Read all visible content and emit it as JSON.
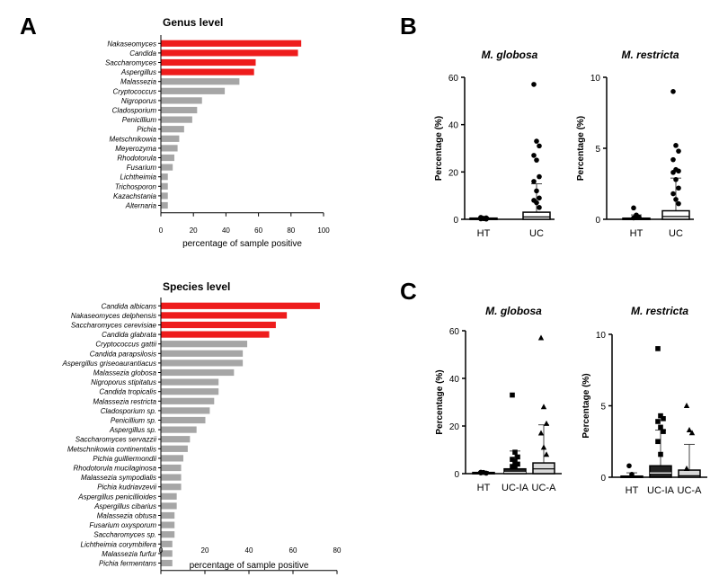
{
  "panels": {
    "A": "A",
    "B": "B",
    "C": "C"
  },
  "colors": {
    "highlight": "#ee1c1c",
    "bar": "#a6a6a6",
    "box_light": "#d9d9d9",
    "axis": "#000000"
  },
  "chart_data": [
    {
      "id": "genus",
      "type": "bar",
      "orientation": "horizontal",
      "title": "Genus level",
      "xlabel": "percentage of sample positive",
      "xlim": [
        0,
        100
      ],
      "xticks": [
        0,
        20,
        40,
        60,
        80,
        100
      ],
      "categories": [
        "Nakaseomyces",
        "Candida",
        "Saccharomyces",
        "Aspergillus",
        "Malassezia",
        "Cryptococcus",
        "Nigroporus",
        "Cladosporium",
        "Penicillium",
        "Pichia",
        "Metschnikowia",
        "Meyerozyma",
        "Rhodotorula",
        "Fusarium",
        "Lichtheimia",
        "Trichosporon",
        "Kazachstania",
        "Alternaria"
      ],
      "values": [
        86,
        84,
        58,
        57,
        48,
        39,
        25,
        22,
        19,
        14,
        11,
        10,
        8,
        7,
        4,
        4,
        4,
        4
      ],
      "highlighted": [
        true,
        true,
        true,
        true,
        false,
        false,
        false,
        false,
        false,
        false,
        false,
        false,
        false,
        false,
        false,
        false,
        false,
        false
      ]
    },
    {
      "id": "species",
      "type": "bar",
      "orientation": "horizontal",
      "title": "Species level",
      "xlabel": "percentage of sample positive",
      "xlim": [
        0,
        80
      ],
      "xticks": [
        0,
        20,
        40,
        60,
        80
      ],
      "categories": [
        "Candida albicans",
        "Nakaseomyces delphensis",
        "Saccharomyces cerevisiae",
        "Candida glabrata",
        "Cryptococcus gattii",
        "Candida parapsilosis",
        "Aspergillus griseoaurantiacus",
        "Malassezia globosa",
        "Nigroporus stipitatus",
        "Candida tropicalis",
        "Malassezia restricta",
        "Cladosporium sp.",
        "Penicillium sp.",
        "Aspergillus sp.",
        "Saccharomyces servazzii",
        "Metschnikowia continentalis",
        "Pichia guilliermondii",
        "Rhodotorula mucilaginosa",
        "Malassezia sympodialis",
        "Pichia kudriavzevii",
        "Aspergillus penicillioides",
        "Aspergillus cibarius",
        "Malassezia obtusa",
        "Fusarium oxysporum",
        "Saccharomyces sp.",
        "Lichtheimia corymbifera",
        "Malassezia furfur",
        "Pichia fermentans"
      ],
      "values": [
        72,
        57,
        52,
        49,
        39,
        37,
        37,
        33,
        26,
        26,
        24,
        22,
        20,
        16,
        13,
        12,
        10,
        9,
        9,
        9,
        7,
        7,
        6,
        6,
        6,
        5,
        5,
        5
      ],
      "highlighted": [
        true,
        true,
        true,
        true,
        false,
        false,
        false,
        false,
        false,
        false,
        false,
        false,
        false,
        false,
        false,
        false,
        false,
        false,
        false,
        false,
        false,
        false,
        false,
        false,
        false,
        false,
        false,
        false
      ]
    },
    {
      "id": "b-globosa",
      "type": "box",
      "title": "M. globosa",
      "ylabel": "Percentage (%)",
      "ylim": [
        0,
        60
      ],
      "yticks": [
        0,
        20,
        40,
        60
      ],
      "groups": [
        {
          "label": "HT",
          "q1": 0,
          "median": 0.1,
          "q3": 0.5,
          "mean": 0.3,
          "err": 0.6,
          "fill": "none",
          "marker": "circle",
          "points": [
            0.2,
            0.4,
            0.6,
            0.8,
            0.3,
            0.1,
            0.5
          ]
        },
        {
          "label": "UC",
          "q1": 0,
          "median": 1,
          "q3": 3,
          "mean": 2.5,
          "err": 12.5,
          "fill": "none",
          "marker": "circle",
          "points": [
            57,
            33,
            31,
            27,
            25,
            18,
            16,
            12,
            9,
            8,
            7,
            5
          ]
        }
      ]
    },
    {
      "id": "b-restricta",
      "type": "box",
      "title": "M. restricta",
      "ylabel": "Percentage (%)",
      "ylim": [
        0,
        10
      ],
      "yticks": [
        0,
        5,
        10
      ],
      "groups": [
        {
          "label": "HT",
          "q1": 0,
          "median": 0.02,
          "q3": 0.08,
          "mean": 0.06,
          "err": 0.25,
          "fill": "none",
          "marker": "circle",
          "points": [
            0.8,
            0.2,
            0.15,
            0.1,
            0.3
          ]
        },
        {
          "label": "UC",
          "q1": 0,
          "median": 0.2,
          "q3": 0.6,
          "mean": 0.5,
          "err": 2.4,
          "fill": "none",
          "marker": "circle",
          "points": [
            9,
            5.2,
            4.8,
            4.2,
            3.5,
            3.4,
            3.3,
            2.8,
            2.2,
            1.8,
            1.4,
            1.1
          ]
        }
      ]
    },
    {
      "id": "c-globosa",
      "type": "box",
      "title": "M. globosa",
      "ylabel": "Percentage (%)",
      "ylim": [
        0,
        60
      ],
      "yticks": [
        0,
        20,
        40,
        60
      ],
      "groups": [
        {
          "label": "HT",
          "q1": 0,
          "median": 0.1,
          "q3": 0.5,
          "mean": 0.3,
          "err": 0.6,
          "fill": "none",
          "marker": "circle",
          "points": [
            0.3,
            0.5,
            0.2,
            0.6
          ]
        },
        {
          "label": "UC-IA",
          "q1": 0,
          "median": 0.5,
          "q3": 2,
          "mean": 1.5,
          "err": 8,
          "fill": "#222222",
          "marker": "square",
          "points": [
            33,
            9,
            7,
            6,
            5,
            4,
            3,
            3
          ]
        },
        {
          "label": "UC-A",
          "q1": 0,
          "median": 2,
          "q3": 4.5,
          "mean": 3.5,
          "err": 17,
          "fill": "#d9d9d9",
          "marker": "triangle",
          "points": [
            57,
            28,
            21,
            17,
            11,
            8
          ]
        }
      ]
    },
    {
      "id": "c-restricta",
      "type": "box",
      "title": "M. restricta",
      "ylabel": "Percentage (%)",
      "ylim": [
        0,
        10
      ],
      "yticks": [
        0,
        5,
        10
      ],
      "groups": [
        {
          "label": "HT",
          "q1": 0,
          "median": 0.02,
          "q3": 0.08,
          "mean": 0.06,
          "err": 0.25,
          "fill": "none",
          "marker": "circle",
          "points": [
            0.8,
            0.2
          ]
        },
        {
          "label": "UC-IA",
          "q1": 0,
          "median": 0.3,
          "q3": 0.8,
          "mean": 0.6,
          "err": 2.7,
          "fill": "#222222",
          "marker": "square",
          "points": [
            9,
            4.3,
            4.1,
            3.9,
            3.5,
            3.2,
            2.5,
            1.6
          ]
        },
        {
          "label": "UC-A",
          "q1": 0,
          "median": 0.1,
          "q3": 0.5,
          "mean": 0.4,
          "err": 1.9,
          "fill": "#d9d9d9",
          "marker": "triangle",
          "points": [
            5,
            3.3,
            3.1,
            0.6
          ]
        }
      ]
    }
  ]
}
